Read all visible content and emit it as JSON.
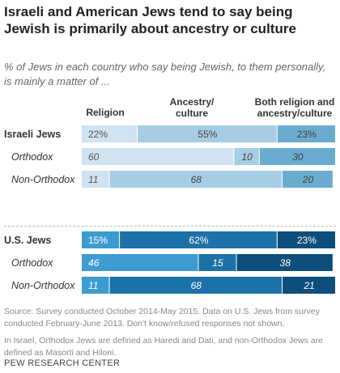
{
  "title": "Israeli and American Jews tend to say being Jewish is primarily about ancestry or culture",
  "subtitle": "% of Jews in each country who say being Jewish, to them personally, is mainly a matter of ...",
  "source": "Source: Survey conducted October 2014-May 2015. Data on U.S. Jews from survey conducted February-June 2013. Don't know/refused responses not shown.",
  "note": "In Israel, Orthodox Jews are defined as Haredi and Dati, and non-Orthodox Jews are defined as Masorti and Hiloni.",
  "brand": "PEW RESEARCH CENTER",
  "chart_data": {
    "type": "bar",
    "stacked": true,
    "orientation": "horizontal",
    "column_headers": [
      "Religion",
      "Ancestry/ culture",
      "Both religion and ancestry/culture"
    ],
    "groups": [
      {
        "name": "Israeli Jews",
        "palette": [
          "#cfe3f0",
          "#a6cde4",
          "#6aaccf"
        ],
        "rows": [
          {
            "label": "Israeli Jews",
            "main": true,
            "values": [
              22,
              55,
              23
            ],
            "labels": [
              "22%",
              "55%",
              "23%"
            ]
          },
          {
            "label": "Orthodox",
            "main": false,
            "values": [
              60,
              10,
              30
            ],
            "labels": [
              "60",
              "10",
              "30"
            ]
          },
          {
            "label": "Non-Orthodox",
            "main": false,
            "values": [
              11,
              68,
              20
            ],
            "labels": [
              "11",
              "68",
              "20"
            ]
          }
        ]
      },
      {
        "name": "U.S. Jews",
        "palette": [
          "#3d9ccf",
          "#1c72a8",
          "#0d4e7c"
        ],
        "rows": [
          {
            "label": "U.S. Jews",
            "main": true,
            "values": [
              15,
              62,
              23
            ],
            "labels": [
              "15%",
              "62%",
              "23%"
            ]
          },
          {
            "label": "Orthodox",
            "main": false,
            "values": [
              46,
              15,
              38
            ],
            "labels": [
              "46",
              "15",
              "38"
            ]
          },
          {
            "label": "Non-Orthodox",
            "main": false,
            "values": [
              11,
              68,
              21
            ],
            "labels": [
              "11",
              "68",
              "21"
            ]
          }
        ]
      }
    ]
  }
}
